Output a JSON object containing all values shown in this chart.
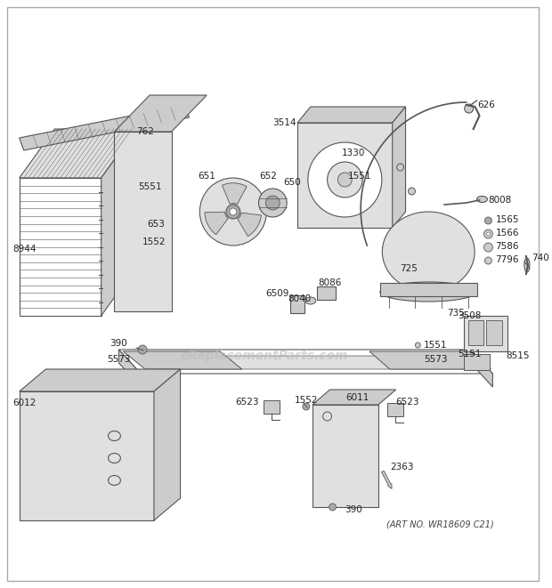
{
  "bg_color": "#ffffff",
  "watermark": "eReplacementParts.com",
  "art_no": "(ART NO. WR18609 C21)",
  "line_color": "#555555",
  "fill_light": "#e0e0e0",
  "fill_mid": "#cccccc",
  "fill_dark": "#aaaaaa"
}
